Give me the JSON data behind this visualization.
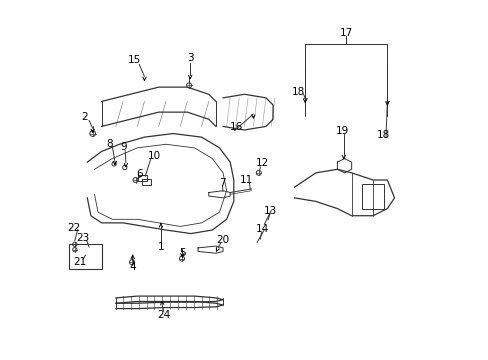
{
  "bg_color": "#ffffff",
  "line_color": "#333333",
  "figsize": [
    4.89,
    3.6
  ],
  "dpi": 100
}
